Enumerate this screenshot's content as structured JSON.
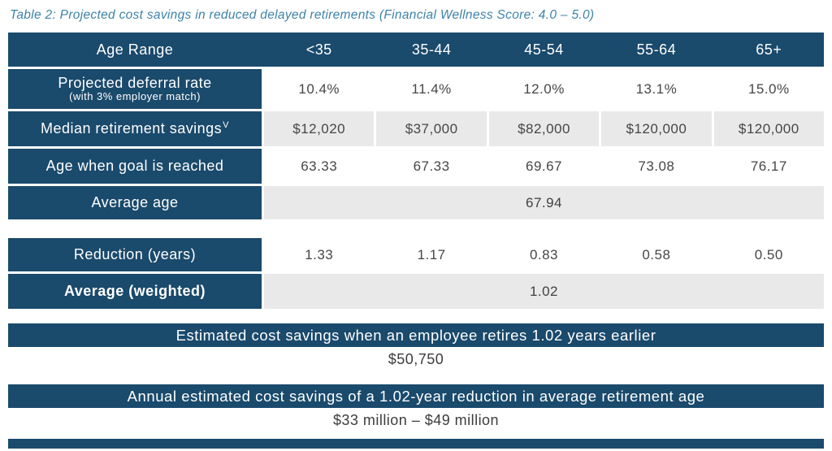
{
  "title": "Table 2: Projected cost savings in reduced delayed retirements (Financial Wellness Score: 4.0 – 5.0)",
  "colors": {
    "navy": "#1a4a6c",
    "row_gray": "#e9e9e9",
    "caption_blue": "#3e82a8"
  },
  "table": {
    "header": {
      "label": "Age Range",
      "columns": [
        "<35",
        "35-44",
        "45-54",
        "55-64",
        "65+"
      ]
    },
    "rows": [
      {
        "label": "Projected deferral rate",
        "sublabel": "(with 3% employer match)",
        "values": [
          "10.4%",
          "11.4%",
          "12.0%",
          "13.1%",
          "15.0%"
        ]
      },
      {
        "label": "Median retirement savings",
        "footnote_mark": "V",
        "values": [
          "$12,020",
          "$37,000",
          "$82,000",
          "$120,000",
          "$120,000"
        ]
      },
      {
        "label": "Age when goal is reached",
        "values": [
          "63.33",
          "67.33",
          "69.67",
          "73.08",
          "76.17"
        ]
      }
    ],
    "average_age": {
      "label": "Average age",
      "value": "67.94"
    },
    "reduction": {
      "label": "Reduction (years)",
      "values": [
        "1.33",
        "1.17",
        "0.83",
        "0.58",
        "0.50"
      ]
    },
    "average_weighted": {
      "label": "Average (weighted)",
      "value": "1.02"
    }
  },
  "summary_employee": {
    "heading": "Estimated cost savings when an employee retires 1.02 years earlier",
    "value": "$50,750"
  },
  "summary_annual": {
    "heading": "Annual estimated cost savings of a 1.02-year reduction in average retirement age",
    "value": "$33 million – $49 million"
  }
}
